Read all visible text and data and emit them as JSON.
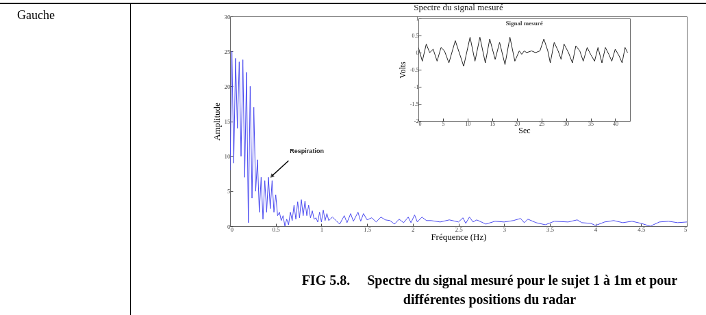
{
  "chart_data": [
    {
      "type": "line",
      "title": "Spectre du signal mesuré",
      "xlabel": "Fréquence (Hz)",
      "ylabel": "Amplitude",
      "annotations": [
        {
          "text": "Respiration",
          "x": 0.46,
          "y": 7.2
        },
        "Gauche",
        "FIG 5.8.     Spectre du signal mesuré pour le sujet 1 à 1m et pour différentes positions du radar"
      ],
      "xlim": [
        0,
        5
      ],
      "ylim": [
        0,
        30
      ],
      "xticks": [
        0,
        0.5,
        1,
        1.5,
        2,
        2.5,
        3,
        3.5,
        4,
        4.5,
        5
      ],
      "yticks": [
        0,
        5,
        10,
        15,
        20,
        25,
        30
      ],
      "grid": false,
      "series": [
        {
          "color": "#4b4bf0",
          "x": [
            0,
            0.02,
            0.04,
            0.06,
            0.08,
            0.1,
            0.12,
            0.14,
            0.16,
            0.18,
            0.2,
            0.22,
            0.24,
            0.26,
            0.28,
            0.3,
            0.32,
            0.34,
            0.36,
            0.38,
            0.4,
            0.42,
            0.44,
            0.46,
            0.48,
            0.5,
            0.52,
            0.54,
            0.56,
            0.58,
            0.6,
            0.62,
            0.64,
            0.66,
            0.68,
            0.7,
            0.72,
            0.74,
            0.76,
            0.78,
            0.8,
            0.82,
            0.84,
            0.86,
            0.88,
            0.9,
            0.92,
            0.94,
            0.96,
            0.98,
            1.0,
            1.02,
            1.04,
            1.06,
            1.08,
            1.12,
            1.16,
            1.2,
            1.25,
            1.28,
            1.32,
            1.35,
            1.4,
            1.43,
            1.46,
            1.5,
            1.55,
            1.6,
            1.65,
            1.7,
            1.75,
            1.8,
            1.85,
            1.9,
            1.95,
            1.98,
            2.02,
            2.05,
            2.1,
            2.15,
            2.2,
            2.3,
            2.4,
            2.5,
            2.55,
            2.58,
            2.62,
            2.66,
            2.7,
            2.8,
            2.9,
            3.0,
            3.1,
            3.18,
            3.22,
            3.26,
            3.35,
            3.45,
            3.55,
            3.7,
            3.8,
            3.85,
            3.95,
            4.0,
            4.1,
            4.2,
            4.3,
            4.4,
            4.5,
            4.6,
            4.7,
            4.8,
            4.9,
            5.0
          ],
          "values": [
            8,
            25,
            9,
            24,
            14,
            23.5,
            10,
            23.8,
            7,
            22,
            0.5,
            20,
            4,
            17,
            5,
            9.5,
            2,
            7,
            1,
            6.5,
            2,
            7,
            2.5,
            6.5,
            2,
            4.5,
            1.5,
            2,
            0.8,
            1.5,
            0,
            1,
            0.2,
            2,
            0.8,
            3,
            1,
            3.5,
            1.2,
            3.8,
            1.5,
            3.6,
            1.5,
            3,
            1.2,
            2.2,
            1,
            1.2,
            0.6,
            2,
            0.6,
            2.3,
            0.8,
            1.8,
            0.8,
            1.3,
            0.8,
            0.3,
            1.5,
            0.5,
            1.8,
            0.7,
            2,
            0.7,
            1.8,
            0.9,
            1.2,
            0.6,
            1.3,
            0.9,
            0.8,
            0.3,
            1,
            0.5,
            1.3,
            0.5,
            1.6,
            0.6,
            1.3,
            0.8,
            0.8,
            0.6,
            0.9,
            0.6,
            1.2,
            0.4,
            1.3,
            0.6,
            0.9,
            0.3,
            0.7,
            0.6,
            0.8,
            1.1,
            0.5,
            1.0,
            0.5,
            0.2,
            0.7,
            0.6,
            0.9,
            0.5,
            0.4,
            0.1,
            0.6,
            0.8,
            0.5,
            0.7,
            0.4,
            0,
            0.6,
            0.7,
            0.5,
            0.6
          ]
        }
      ]
    },
    {
      "type": "line",
      "title": "Signal mesuré",
      "xlabel": "Sec",
      "ylabel": "Volts",
      "xlim": [
        0,
        43
      ],
      "ylim": [
        -2,
        1
      ],
      "xticks": [
        0,
        5,
        10,
        15,
        20,
        25,
        30,
        35,
        40
      ],
      "yticks": [
        -2,
        -1.5,
        -1,
        -0.5,
        0,
        0.5,
        1
      ],
      "grid": false,
      "series": [
        {
          "color": "#222222",
          "x": [
            0,
            0.8,
            1.6,
            2.3,
            3,
            3.8,
            4.6,
            5.3,
            6.2,
            7.5,
            8.3,
            9.2,
            10.5,
            11.5,
            12.5,
            13.6,
            14.5,
            15.6,
            16.5,
            17.6,
            18.6,
            19.6,
            20.5,
            21,
            21.5,
            22,
            23,
            23.8,
            24.7,
            25.5,
            26.3,
            26.8,
            27.6,
            28.4,
            29,
            29.6,
            30.5,
            31.3,
            32,
            32.8,
            33.5,
            34.3,
            35,
            35.8,
            36.5,
            37.3,
            38,
            38.7,
            39.3,
            40,
            40.8,
            41.4,
            42,
            42.5
          ],
          "values": [
            0.15,
            -0.25,
            0.25,
            0,
            0.1,
            -0.25,
            0.15,
            0.05,
            -0.3,
            0.35,
            0,
            -0.4,
            0.45,
            -0.25,
            0.45,
            -0.3,
            0.4,
            -0.2,
            0.3,
            -0.35,
            0.45,
            -0.25,
            0.05,
            -0.05,
            0.05,
            0,
            0.05,
            0,
            0.05,
            0.4,
            0.05,
            -0.3,
            0.3,
            0.05,
            -0.2,
            0.25,
            0,
            -0.3,
            0.2,
            0.05,
            -0.25,
            0.15,
            -0.05,
            -0.25,
            0.15,
            -0.3,
            0.15,
            -0.05,
            -0.25,
            0.1,
            -0.1,
            -0.3,
            0.15,
            0
          ]
        }
      ]
    }
  ]
}
